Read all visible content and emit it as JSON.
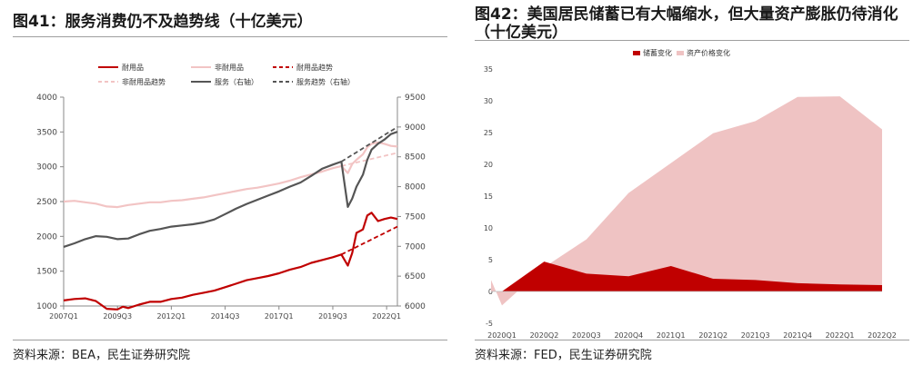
{
  "left": {
    "title": "图41：服务消费仍不及趋势线（十亿美元）",
    "source": "资料来源：BEA，民生证券研究院"
  },
  "right": {
    "title": "图42：美国居民储蓄已有大幅缩水，但大量资产膨胀仍待消化（十亿美元）",
    "source": "资料来源：FED，民生证券研究院"
  },
  "colors": {
    "durable": "#c00000",
    "nondurable": "#f2c4c4",
    "services": "#555555",
    "savings_area": "#c00000",
    "assets_area": "#efc3c3"
  },
  "chart_data": [
    {
      "type": "line",
      "title": "服务消费仍不及趋势线（十亿美元）",
      "x_ticks": [
        "2007Q1",
        "2009Q3",
        "2012Q1",
        "2014Q3",
        "2017Q1",
        "2019Q3",
        "2022Q1"
      ],
      "x_range": [
        2007.0,
        2022.5
      ],
      "y_left": {
        "ticks": [
          1000,
          1500,
          2000,
          2500,
          3000,
          3500,
          4000
        ],
        "range": [
          1000,
          4000
        ],
        "label": ""
      },
      "y_right": {
        "ticks": [
          6000,
          6500,
          7000,
          7500,
          8000,
          8500,
          9000,
          9500
        ],
        "range": [
          6000,
          9500
        ],
        "label": ""
      },
      "legend": [
        {
          "name": "耐用品",
          "style": "solid",
          "color": "#c00000"
        },
        {
          "name": "非耐用品",
          "style": "solid",
          "color": "#f2c4c4"
        },
        {
          "name": "耐用品趋势",
          "style": "dashed",
          "color": "#c00000"
        },
        {
          "name": "非耐用品趋势",
          "style": "dashed",
          "color": "#f2c4c4"
        },
        {
          "name": "服务（右轴）",
          "style": "solid",
          "color": "#555555"
        },
        {
          "name": "服务趋势（右轴）",
          "style": "dashed",
          "color": "#555555"
        }
      ],
      "series": [
        {
          "name": "耐用品",
          "axis": "left",
          "points": [
            [
              2007.0,
              1080
            ],
            [
              2007.5,
              1100
            ],
            [
              2008.0,
              1110
            ],
            [
              2008.5,
              1070
            ],
            [
              2009.0,
              960
            ],
            [
              2009.5,
              950
            ],
            [
              2009.75,
              990
            ],
            [
              2010.0,
              970
            ],
            [
              2010.5,
              1020
            ],
            [
              2011.0,
              1060
            ],
            [
              2011.5,
              1060
            ],
            [
              2012.0,
              1100
            ],
            [
              2012.5,
              1120
            ],
            [
              2013.0,
              1160
            ],
            [
              2013.5,
              1190
            ],
            [
              2014.0,
              1220
            ],
            [
              2014.5,
              1270
            ],
            [
              2015.0,
              1320
            ],
            [
              2015.5,
              1370
            ],
            [
              2016.0,
              1400
            ],
            [
              2016.5,
              1430
            ],
            [
              2017.0,
              1470
            ],
            [
              2017.5,
              1520
            ],
            [
              2018.0,
              1560
            ],
            [
              2018.5,
              1620
            ],
            [
              2019.0,
              1660
            ],
            [
              2019.5,
              1700
            ],
            [
              2019.9,
              1740
            ],
            [
              2020.2,
              1580
            ],
            [
              2020.4,
              1760
            ],
            [
              2020.6,
              2050
            ],
            [
              2020.9,
              2100
            ],
            [
              2021.1,
              2300
            ],
            [
              2021.3,
              2340
            ],
            [
              2021.6,
              2220
            ],
            [
              2021.9,
              2250
            ],
            [
              2022.2,
              2270
            ],
            [
              2022.5,
              2250
            ]
          ]
        },
        {
          "name": "非耐用品",
          "axis": "left",
          "points": [
            [
              2007.0,
              2500
            ],
            [
              2007.5,
              2510
            ],
            [
              2008.0,
              2490
            ],
            [
              2008.5,
              2470
            ],
            [
              2009.0,
              2430
            ],
            [
              2009.5,
              2420
            ],
            [
              2010.0,
              2450
            ],
            [
              2010.5,
              2470
            ],
            [
              2011.0,
              2490
            ],
            [
              2011.5,
              2490
            ],
            [
              2012.0,
              2510
            ],
            [
              2012.5,
              2520
            ],
            [
              2013.0,
              2540
            ],
            [
              2013.5,
              2560
            ],
            [
              2014.0,
              2590
            ],
            [
              2014.5,
              2620
            ],
            [
              2015.0,
              2650
            ],
            [
              2015.5,
              2680
            ],
            [
              2016.0,
              2700
            ],
            [
              2016.5,
              2730
            ],
            [
              2017.0,
              2760
            ],
            [
              2017.5,
              2800
            ],
            [
              2018.0,
              2850
            ],
            [
              2018.5,
              2890
            ],
            [
              2019.0,
              2930
            ],
            [
              2019.5,
              2980
            ],
            [
              2019.9,
              3010
            ],
            [
              2020.2,
              2910
            ],
            [
              2020.4,
              3040
            ],
            [
              2020.6,
              3100
            ],
            [
              2020.9,
              3180
            ],
            [
              2021.1,
              3280
            ],
            [
              2021.3,
              3330
            ],
            [
              2021.6,
              3350
            ],
            [
              2021.9,
              3330
            ],
            [
              2022.2,
              3300
            ],
            [
              2022.5,
              3290
            ]
          ]
        },
        {
          "name": "耐用品趋势",
          "axis": "left",
          "points": [
            [
              2019.9,
              1740
            ],
            [
              2022.5,
              2140
            ]
          ]
        },
        {
          "name": "非耐用品趋势",
          "axis": "left",
          "points": [
            [
              2019.9,
              3010
            ],
            [
              2022.5,
              3200
            ]
          ]
        },
        {
          "name": "服务（右轴）",
          "axis": "right",
          "points": [
            [
              2007.0,
              6990
            ],
            [
              2007.5,
              7050
            ],
            [
              2008.0,
              7120
            ],
            [
              2008.5,
              7170
            ],
            [
              2009.0,
              7160
            ],
            [
              2009.5,
              7120
            ],
            [
              2010.0,
              7130
            ],
            [
              2010.5,
              7200
            ],
            [
              2011.0,
              7260
            ],
            [
              2011.5,
              7290
            ],
            [
              2012.0,
              7330
            ],
            [
              2012.5,
              7350
            ],
            [
              2013.0,
              7370
            ],
            [
              2013.5,
              7400
            ],
            [
              2014.0,
              7450
            ],
            [
              2014.5,
              7540
            ],
            [
              2015.0,
              7630
            ],
            [
              2015.5,
              7710
            ],
            [
              2016.0,
              7780
            ],
            [
              2016.5,
              7850
            ],
            [
              2017.0,
              7920
            ],
            [
              2017.5,
              8000
            ],
            [
              2018.0,
              8070
            ],
            [
              2018.5,
              8180
            ],
            [
              2019.0,
              8300
            ],
            [
              2019.5,
              8370
            ],
            [
              2019.9,
              8420
            ],
            [
              2020.2,
              7660
            ],
            [
              2020.4,
              7800
            ],
            [
              2020.6,
              8000
            ],
            [
              2020.9,
              8200
            ],
            [
              2021.1,
              8450
            ],
            [
              2021.3,
              8620
            ],
            [
              2021.6,
              8720
            ],
            [
              2021.9,
              8790
            ],
            [
              2022.2,
              8880
            ],
            [
              2022.5,
              8920
            ]
          ]
        },
        {
          "name": "服务趋势（右轴）",
          "axis": "right",
          "points": [
            [
              2019.9,
              8420
            ],
            [
              2022.5,
              9000
            ]
          ]
        }
      ]
    },
    {
      "type": "area",
      "title": "美国居民储蓄已有大幅缩水，但大量资产膨胀仍待消化（十亿美元）",
      "categories": [
        "2020Q1",
        "2020Q2",
        "2020Q3",
        "2020Q4",
        "2021Q1",
        "2021Q2",
        "2021Q3",
        "2021Q4",
        "2022Q1",
        "2022Q2"
      ],
      "ylim": [
        -5,
        35
      ],
      "y_ticks": [
        -5,
        0,
        5,
        10,
        15,
        20,
        25,
        30,
        35
      ],
      "legend": [
        {
          "name": "储蓄变化",
          "color": "#c00000"
        },
        {
          "name": "资产价格变化",
          "color": "#efc3c3"
        }
      ],
      "series": [
        {
          "name": "资产价格变化",
          "values": [
            -2.2,
            3.8,
            8.2,
            15.5,
            20.2,
            24.9,
            26.8,
            30.6,
            30.7,
            25.5
          ],
          "start_value": 1.8
        },
        {
          "name": "储蓄变化",
          "values": [
            0,
            4.7,
            2.8,
            2.4,
            4.0,
            2.0,
            1.8,
            1.3,
            1.1,
            1.0
          ]
        }
      ]
    }
  ]
}
